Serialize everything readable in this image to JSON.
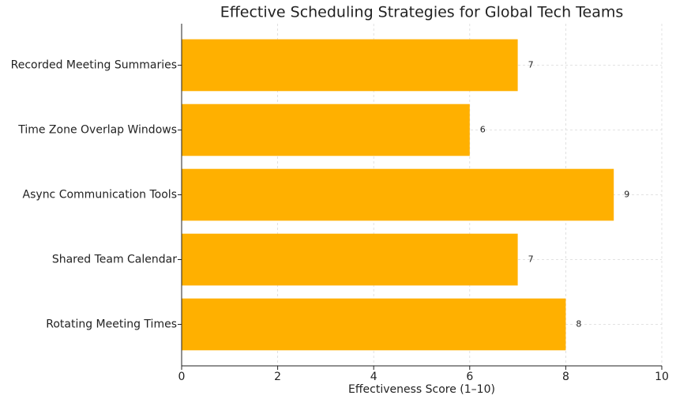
{
  "chart_data": {
    "type": "barh",
    "title": "Effective Scheduling Strategies for Global Tech Teams",
    "x_label": "Effectiveness Score (1–10)",
    "categories": [
      "Rotating Meeting Times",
      "Shared Team Calendar",
      "Async Communication Tools",
      "Time Zone Overlap Windows",
      "Recorded Meeting Summaries"
    ],
    "values": [
      8,
      7,
      9,
      6,
      7
    ],
    "color": "#ffb000",
    "xlim": [
      0,
      10
    ],
    "xticks": [
      0,
      2,
      4,
      6,
      8,
      10
    ],
    "grid": true
  }
}
